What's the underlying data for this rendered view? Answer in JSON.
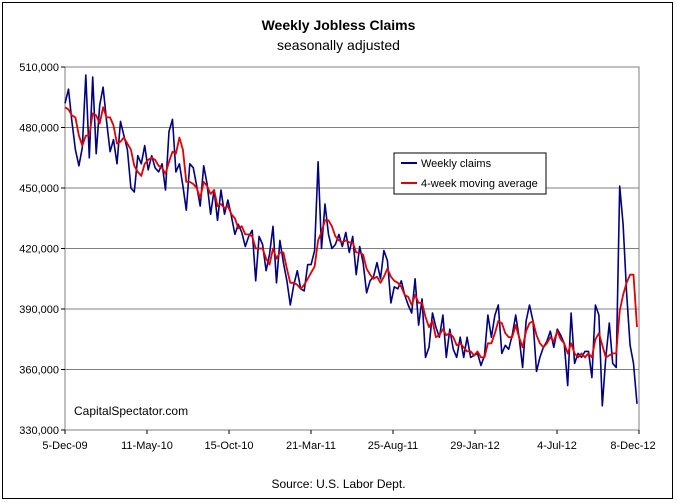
{
  "chart_data": {
    "type": "line",
    "title": "Weekly Jobless Claims",
    "subtitle": "seasonally adjusted",
    "source": "Source: U.S. Labor Dept.",
    "watermark": "CapitalSpectator.com",
    "ylim": [
      330000,
      510000
    ],
    "y_ticks": [
      "330,000",
      "360,000",
      "390,000",
      "420,000",
      "450,000",
      "480,000",
      "510,000"
    ],
    "x_ticks": [
      "5-Dec-09",
      "11-May-10",
      "15-Oct-10",
      "21-Mar-11",
      "25-Aug-11",
      "29-Jan-12",
      "4-Jul-12",
      "8-Dec-12"
    ],
    "grid": true,
    "legend_position": "right",
    "series": [
      {
        "name": "Weekly claims",
        "color": "#000080",
        "values": [
          492000,
          499000,
          483000,
          469000,
          461000,
          470000,
          506000,
          465000,
          505000,
          467000,
          491000,
          500000,
          483000,
          468000,
          474000,
          462000,
          483000,
          476000,
          469000,
          450000,
          448000,
          466000,
          462000,
          471000,
          459000,
          466000,
          460000,
          458000,
          462000,
          449000,
          478000,
          484000,
          458000,
          462000,
          451000,
          439000,
          462000,
          460000,
          451000,
          441000,
          461000,
          452000,
          437000,
          449000,
          434000,
          449000,
          437000,
          444000,
          436000,
          427000,
          432000,
          428000,
          421000,
          426000,
          429000,
          404000,
          426000,
          422000,
          409000,
          417000,
          431000,
          403000,
          424000,
          413000,
          404000,
          392000,
          402000,
          409000,
          400000,
          399000,
          412000,
          412000,
          419000,
          463000,
          420000,
          442000,
          427000,
          420000,
          422000,
          427000,
          421000,
          428000,
          418000,
          426000,
          407000,
          421000,
          413000,
          398000,
          404000,
          406000,
          413000,
          405000,
          419000,
          414000,
          393000,
          401000,
          400000,
          404000,
          397000,
          392000,
          388000,
          405000,
          382000,
          395000,
          366000,
          371000,
          388000,
          381000,
          376000,
          387000,
          366000,
          380000,
          370000,
          366000,
          376000,
          366000,
          376000,
          366000,
          367000,
          368000,
          362000,
          367000,
          387000,
          376000,
          387000,
          392000,
          368000,
          372000,
          370000,
          377000,
          387000,
          376000,
          361000,
          384000,
          392000,
          384000,
          359000,
          366000,
          371000,
          374000,
          379000,
          371000,
          380000,
          377000,
          373000,
          352000,
          388000,
          363000,
          368000,
          366000,
          369000,
          369000,
          356000,
          392000,
          387000,
          342000,
          366000,
          383000,
          363000,
          361000,
          451000,
          432000,
          398000,
          372000,
          363000,
          343000
        ]
      },
      {
        "name": "4-week moving average",
        "color": "#e00000",
        "values": [
          490000,
          489000,
          486000,
          485000,
          476000,
          471000,
          476000,
          476000,
          487000,
          486000,
          482000,
          490000,
          485000,
          485000,
          481000,
          472000,
          473000,
          475000,
          472000,
          469000,
          461000,
          458000,
          456000,
          462000,
          464000,
          465000,
          464000,
          461000,
          460000,
          457000,
          463000,
          468000,
          467000,
          475000,
          469000,
          453000,
          453000,
          452000,
          450000,
          445000,
          453000,
          451000,
          447000,
          449000,
          441000,
          442000,
          440000,
          441000,
          437000,
          435000,
          430000,
          431000,
          427000,
          427000,
          426000,
          420000,
          420000,
          420000,
          415000,
          412000,
          420000,
          415000,
          418000,
          418000,
          410000,
          403000,
          403000,
          402000,
          400000,
          402000,
          405000,
          408000,
          411000,
          424000,
          428000,
          434000,
          434000,
          431000,
          426000,
          424000,
          423000,
          424000,
          423000,
          423000,
          418000,
          418000,
          417000,
          410000,
          407000,
          405000,
          406000,
          403000,
          406000,
          410000,
          406000,
          404000,
          403000,
          401000,
          397000,
          396000,
          392000,
          397000,
          393000,
          393000,
          386000,
          381000,
          384000,
          376000,
          377000,
          380000,
          377000,
          378000,
          376000,
          372000,
          373000,
          371000,
          369000,
          369000,
          367000,
          369000,
          366000,
          366000,
          373000,
          373000,
          378000,
          384000,
          383000,
          378000,
          376000,
          376000,
          382000,
          376000,
          371000,
          379000,
          383000,
          384000,
          377000,
          373000,
          371000,
          373000,
          376000,
          374000,
          379000,
          375000,
          373000,
          368000,
          373000,
          368000,
          366000,
          368000,
          366000,
          368000,
          366000,
          375000,
          378000,
          372000,
          366000,
          367000,
          368000,
          368000,
          389000,
          397000,
          403000,
          407000,
          407000,
          381000
        ]
      }
    ]
  }
}
